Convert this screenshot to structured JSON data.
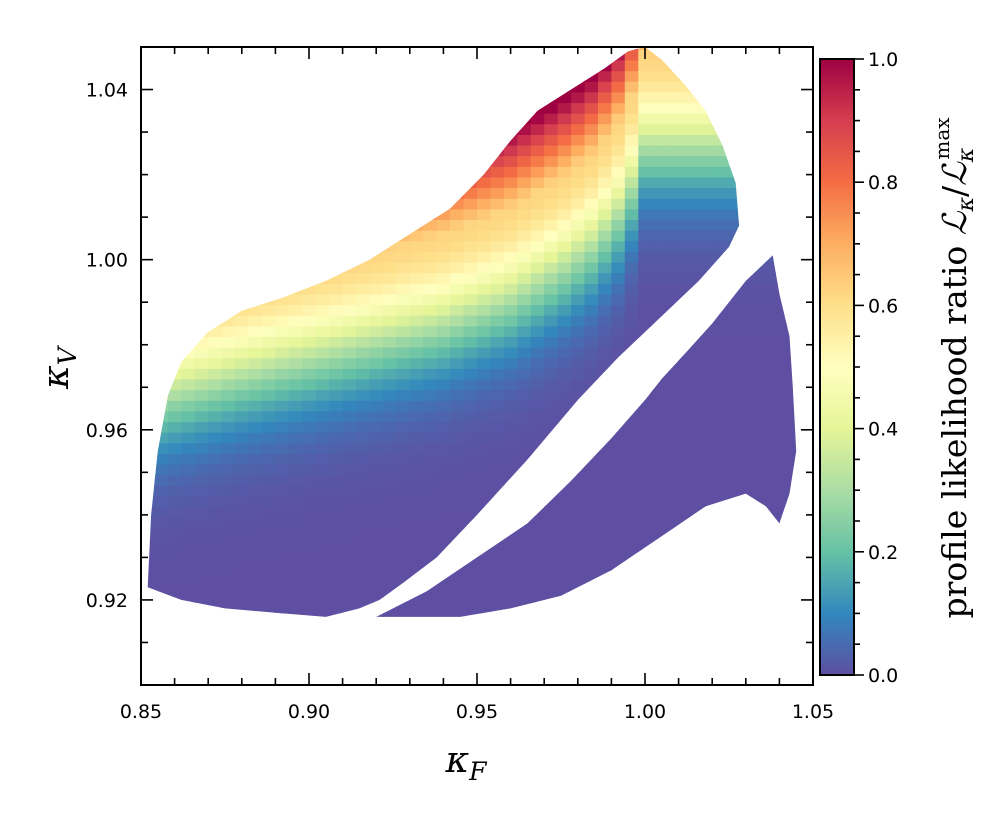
{
  "chart_data": {
    "type": "heatmap",
    "title": "",
    "xlabel": "κ",
    "xlabel_sub": "F",
    "ylabel": "κ",
    "ylabel_sub": "V",
    "xlim": [
      0.85,
      1.05
    ],
    "ylim": [
      0.9,
      1.05
    ],
    "x_ticks": [
      0.85,
      0.9,
      0.95,
      1.0,
      1.05
    ],
    "x_tick_labels": [
      "0.85",
      "0.90",
      "0.95",
      "1.00",
      "1.05"
    ],
    "y_ticks": [
      0.92,
      0.96,
      1.0,
      1.04
    ],
    "y_tick_labels": [
      "0.92",
      "0.96",
      "1.00",
      "1.04"
    ],
    "grid": false,
    "colormap": "Spectral_r",
    "colorbar": {
      "label_text": "profile likelihood ratio ",
      "label_math": "ℒκ/ℒκmax",
      "label_numerator": "ℒ",
      "label_numerator_sub": "κ",
      "label_slash": "/",
      "label_denominator": "ℒ",
      "label_denominator_sub": "κ",
      "label_denominator_sup": "max",
      "range": [
        0.0,
        1.0
      ],
      "ticks": [
        0.0,
        0.2,
        0.4,
        0.6,
        0.8,
        1.0
      ],
      "tick_labels": [
        "0.0",
        "0.2",
        "0.4",
        "0.6",
        "0.8",
        "1.0"
      ],
      "colors": [
        "#5e4fa2",
        "#3288bd",
        "#66c2a5",
        "#abdda4",
        "#e6f598",
        "#ffffbf",
        "#fee08b",
        "#fdae61",
        "#f46d43",
        "#d53e4f",
        "#9e0142"
      ]
    },
    "regions": [
      {
        "name": "upper-left band",
        "outline": [
          [
            0.852,
            0.923
          ],
          [
            0.853,
            0.94
          ],
          [
            0.855,
            0.955
          ],
          [
            0.858,
            0.968
          ],
          [
            0.862,
            0.976
          ],
          [
            0.87,
            0.983
          ],
          [
            0.88,
            0.988
          ],
          [
            0.892,
            0.991
          ],
          [
            0.905,
            0.995
          ],
          [
            0.918,
            1.0
          ],
          [
            0.93,
            1.006
          ],
          [
            0.942,
            1.012
          ],
          [
            0.952,
            1.02
          ],
          [
            0.96,
            1.028
          ],
          [
            0.968,
            1.035
          ],
          [
            0.978,
            1.04
          ],
          [
            0.988,
            1.045
          ],
          [
            0.995,
            1.049
          ],
          [
            1.0,
            1.05
          ],
          [
            1.005,
            1.047
          ],
          [
            1.012,
            1.041
          ],
          [
            1.018,
            1.035
          ],
          [
            1.023,
            1.027
          ],
          [
            1.027,
            1.018
          ],
          [
            1.028,
            1.008
          ],
          [
            1.025,
            1.003
          ],
          [
            1.016,
            0.995
          ],
          [
            1.004,
            0.986
          ],
          [
            0.992,
            0.977
          ],
          [
            0.98,
            0.967
          ],
          [
            0.965,
            0.953
          ],
          [
            0.95,
            0.94
          ],
          [
            0.938,
            0.93
          ],
          [
            0.928,
            0.924
          ],
          [
            0.921,
            0.92
          ],
          [
            0.915,
            0.918
          ],
          [
            0.905,
            0.916
          ],
          [
            0.89,
            0.917
          ],
          [
            0.875,
            0.918
          ],
          [
            0.862,
            0.92
          ]
        ]
      },
      {
        "name": "lower-right band",
        "outline": [
          [
            0.92,
            0.916
          ],
          [
            0.93,
            0.916
          ],
          [
            0.945,
            0.916
          ],
          [
            0.96,
            0.918
          ],
          [
            0.975,
            0.921
          ],
          [
            0.99,
            0.927
          ],
          [
            1.005,
            0.935
          ],
          [
            1.018,
            0.942
          ],
          [
            1.03,
            0.945
          ],
          [
            1.036,
            0.942
          ],
          [
            1.04,
            0.938
          ],
          [
            1.043,
            0.945
          ],
          [
            1.045,
            0.955
          ],
          [
            1.044,
            0.97
          ],
          [
            1.043,
            0.982
          ],
          [
            1.04,
            0.992
          ],
          [
            1.038,
            1.001
          ],
          [
            1.03,
            0.995
          ],
          [
            1.02,
            0.985
          ],
          [
            1.012,
            0.978
          ],
          [
            1.005,
            0.972
          ],
          [
            1.0,
            0.967
          ],
          [
            0.99,
            0.958
          ],
          [
            0.978,
            0.948
          ],
          [
            0.965,
            0.938
          ],
          [
            0.95,
            0.93
          ],
          [
            0.935,
            0.922
          ],
          [
            0.925,
            0.918
          ]
        ]
      }
    ],
    "ridge": [
      [
        0.852,
        0.988
      ],
      [
        0.88,
        0.994
      ],
      [
        0.9,
        0.998
      ],
      [
        0.92,
        1.002
      ],
      [
        0.94,
        1.006
      ],
      [
        0.96,
        1.012
      ],
      [
        0.975,
        1.019
      ],
      [
        0.985,
        1.025
      ],
      [
        0.992,
        1.032
      ],
      [
        0.997,
        1.04
      ],
      [
        1.0,
        1.048
      ]
    ]
  }
}
